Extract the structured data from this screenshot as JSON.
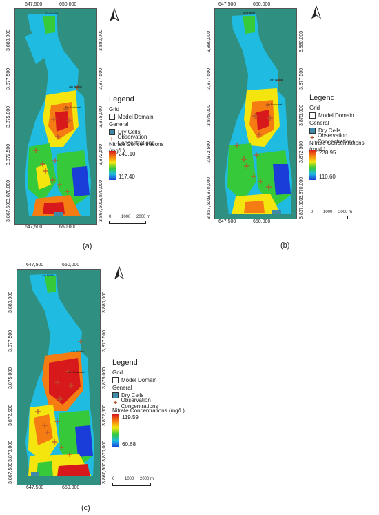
{
  "panels": [
    {
      "caption": "(a)",
      "x_ticks": [
        "647,500",
        "650,000"
      ],
      "y_ticks": [
        "3,880,000",
        "3,877,500",
        "3,875,000",
        "3,872,500",
        "3,870,000",
        "3,867,500"
      ],
      "well_labels": [
        "Ain Hallifa",
        "Ain Walndi",
        "Ain Boukosal"
      ],
      "legend": {
        "title": "Legend",
        "grid_heading": "Grid",
        "model_domain": "Model Domain",
        "general_heading": "General",
        "dry_cells": "Dry Cells",
        "observations": "Observation Concentrations",
        "ramp_title": "Nitrate Concentrations (mg/L)",
        "max": "249.10",
        "min": "117.40"
      },
      "scale": {
        "zero": "0",
        "mid": "1000",
        "end": "2000 m"
      }
    },
    {
      "caption": "(b)",
      "x_ticks": [
        "647,500",
        "650,000"
      ],
      "y_ticks": [
        "3,880,000",
        "3,877,500",
        "3,875,000",
        "3,872,500",
        "3,870,000",
        "3,867,500"
      ],
      "well_labels": [
        "Ain Hallifa",
        "Ain Walndi",
        "Ain Boukosal"
      ],
      "legend": {
        "title": "Legend",
        "grid_heading": "Grid",
        "model_domain": "Model Domain",
        "general_heading": "General",
        "dry_cells": "Dry Cells",
        "observations": "Observation Concentrations",
        "ramp_title": "Nitrate Concentrations (mg/L)",
        "max": "238.95",
        "min": "110.60"
      },
      "scale": {
        "zero": "0",
        "mid": "1000",
        "end": "2000 m"
      }
    },
    {
      "caption": "(c)",
      "x_ticks": [
        "647,500",
        "650,000"
      ],
      "y_ticks": [
        "3,880,000",
        "3,877,500",
        "3,875,000",
        "3,872,500",
        "3,870,000",
        "3,867,500"
      ],
      "well_labels": [
        "Ain Hallifa",
        "Ain Walndi",
        "Ain Boukosal"
      ],
      "legend": {
        "title": "Legend",
        "grid_heading": "Grid",
        "model_domain": "Model Domain",
        "general_heading": "General",
        "dry_cells": "Dry Cells",
        "observations": "Observation Concentrations",
        "ramp_title": "Nitrate Concentrations (mg/L)",
        "max": "119.59",
        "min": "60.68"
      },
      "scale": {
        "zero": "0",
        "mid": "1000",
        "end": "2000 m"
      }
    }
  ],
  "colors": {
    "background_teal": "#2f8f80",
    "high": "#d7191c",
    "mid_high": "#f5e50f",
    "mid": "#36c93a",
    "mid_low": "#1fbbe0",
    "low": "#1a3cd8",
    "dry_cell": "#3e8aa8",
    "observation_marker": "#b8552a"
  }
}
